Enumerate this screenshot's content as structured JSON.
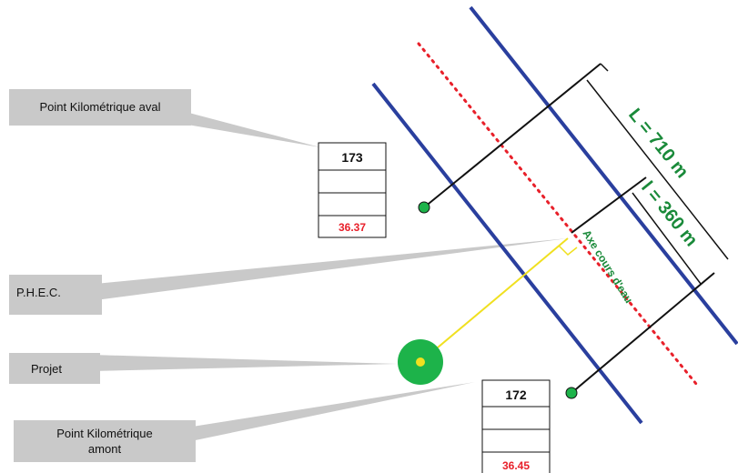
{
  "callouts": {
    "pk_aval": "Point Kilométrique aval",
    "phec": "P.H.E.C.",
    "projet": "Projet",
    "pk_amont_line1": "Point Kilométrique",
    "pk_amont_line2": "amont"
  },
  "pk_aval_box": {
    "number": "173",
    "value": "36.37"
  },
  "pk_amont_box": {
    "number": "172",
    "value": "36.45"
  },
  "dimensions": {
    "L": "L = 710 m",
    "l": "l = 360 m"
  },
  "axis_label": "Axe cours d'eau",
  "colors": {
    "bank": "#2a3f9e",
    "axis": "#e8202a",
    "section": "#111111",
    "node": "#1db34a",
    "projet_link": "#f0e020",
    "dim_text": "#1a8a3a",
    "callout_box": "#c9c9c9"
  }
}
